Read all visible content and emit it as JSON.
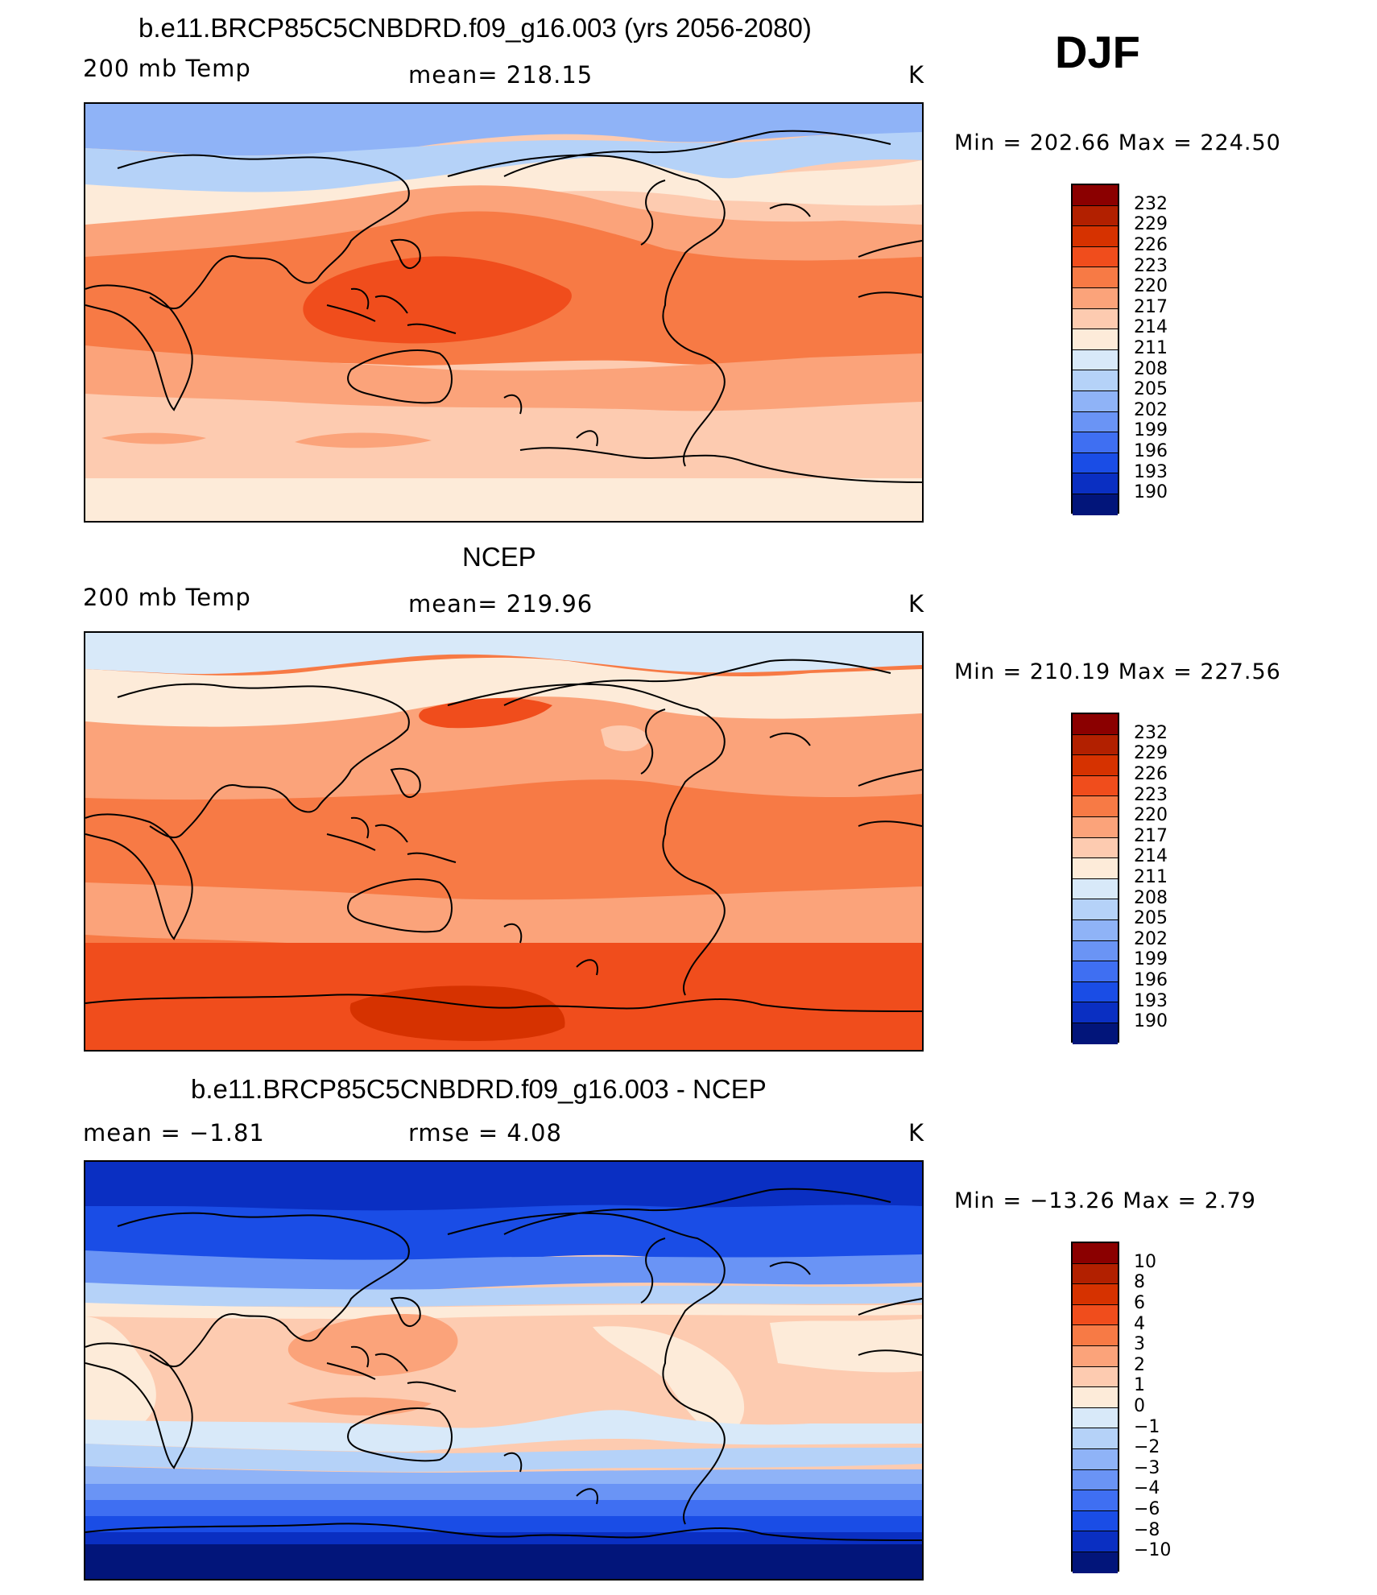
{
  "header": {
    "season": "DJF"
  },
  "panels": [
    {
      "title": "b.e11.BRCP85C5CNBDRD.f09_g16.003 (yrs 2056-2080)",
      "left_label": "200 mb Temp",
      "center_label": "mean=  218.15",
      "right_label": "K",
      "minmax": "Min  =  202.66  Max  =  224.50",
      "colorbar_labels": [
        "232",
        "229",
        "226",
        "223",
        "220",
        "217",
        "214",
        "211",
        "208",
        "205",
        "202",
        "199",
        "196",
        "193",
        "190"
      ],
      "colorbar_colors": [
        "#8b0000",
        "#b22000",
        "#d63200",
        "#f04d1c",
        "#f77a45",
        "#fba37a",
        "#fdcbb0",
        "#fdebd9",
        "#d8e9f9",
        "#b5d2f8",
        "#8fb3f7",
        "#6a94f5",
        "#3f6ff2",
        "#1a4de6",
        "#0a2fc2",
        "#02157a"
      ],
      "mean_value": 218.15,
      "min_value": 202.66,
      "max_value": 224.5
    },
    {
      "title": "NCEP",
      "left_label": "200 mb Temp",
      "center_label": "mean=  219.96",
      "right_label": "K",
      "minmax": "Min  =  210.19  Max  =  227.56",
      "colorbar_labels": [
        "232",
        "229",
        "226",
        "223",
        "220",
        "217",
        "214",
        "211",
        "208",
        "205",
        "202",
        "199",
        "196",
        "193",
        "190"
      ],
      "colorbar_colors": [
        "#8b0000",
        "#b22000",
        "#d63200",
        "#f04d1c",
        "#f77a45",
        "#fba37a",
        "#fdcbb0",
        "#fdebd9",
        "#d8e9f9",
        "#b5d2f8",
        "#8fb3f7",
        "#6a94f5",
        "#3f6ff2",
        "#1a4de6",
        "#0a2fc2",
        "#02157a"
      ],
      "mean_value": 219.96,
      "min_value": 210.19,
      "max_value": 227.56
    },
    {
      "title": "b.e11.BRCP85C5CNBDRD.f09_g16.003 - NCEP",
      "left_label": "mean  =    −1.81",
      "center_label": "rmse  =     4.08",
      "right_label": "K",
      "minmax": "Min  =  −13.26  Max  =     2.79",
      "colorbar_labels": [
        "10",
        "8",
        "6",
        "4",
        "3",
        "2",
        "1",
        "0",
        "−1",
        "−2",
        "−3",
        "−4",
        "−6",
        "−8",
        "−10"
      ],
      "colorbar_colors": [
        "#8b0000",
        "#b22000",
        "#d63200",
        "#f04d1c",
        "#f77a45",
        "#fba37a",
        "#fdcbb0",
        "#fdebd9",
        "#d8e9f9",
        "#b5d2f8",
        "#8fb3f7",
        "#6a94f5",
        "#3f6ff2",
        "#1a4de6",
        "#0a2fc2",
        "#02157a"
      ],
      "mean_value": -1.81,
      "rmse_value": 4.08,
      "min_value": -13.26,
      "max_value": 2.79
    }
  ]
}
